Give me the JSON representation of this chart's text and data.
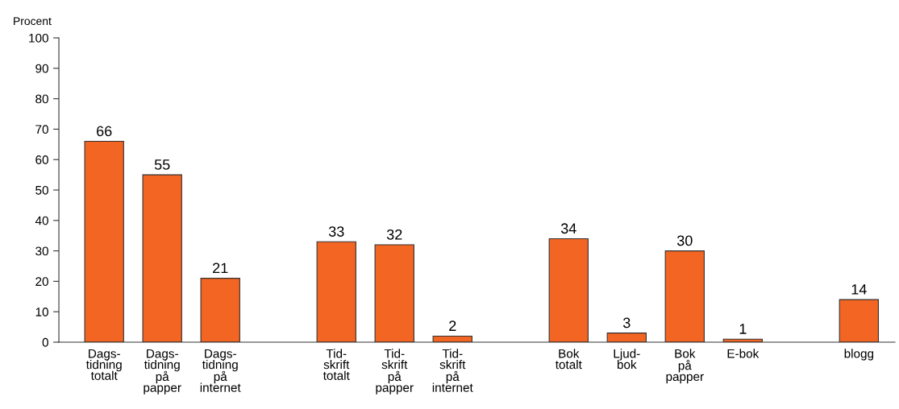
{
  "chart_data": {
    "type": "bar",
    "ylabel": "Procent",
    "categories": [
      "Dags-\ntidning\ntotalt",
      "Dags-\ntidning\npå\npapper",
      "Dags-\ntidning\npå\ninternet",
      null,
      "Tid-\nskrift\ntotalt",
      "Tid-\nskrift\npå\npapper",
      "Tid-\nskrift\npå\ninternet",
      null,
      "Bok\ntotalt",
      "Ljud-\nbok",
      "Bok\npå\npapper",
      "E-bok",
      null,
      "blogg"
    ],
    "values": [
      66,
      55,
      21,
      null,
      33,
      32,
      2,
      null,
      34,
      3,
      30,
      1,
      null,
      14
    ],
    "color": "#f26522",
    "ylim": [
      0,
      100
    ],
    "yticks": [
      0,
      10,
      20,
      30,
      40,
      50,
      60,
      70,
      80,
      90,
      100
    ],
    "grid": false,
    "data_labels": true
  }
}
